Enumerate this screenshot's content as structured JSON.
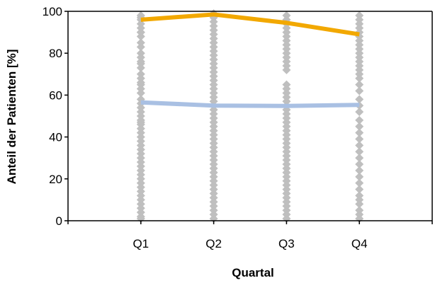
{
  "chart_data": {
    "type": "line",
    "title": "",
    "xlabel": "Quartal",
    "ylabel": "Anteil der Patienten [%]",
    "categories": [
      "Q1",
      "Q2",
      "Q3",
      "Q4"
    ],
    "ylim": [
      0,
      100
    ],
    "yticks": [
      0,
      20,
      40,
      60,
      80,
      100
    ],
    "grid": false,
    "legend": "none",
    "series": [
      {
        "color": "#F2A800",
        "values": [
          96,
          98.5,
          94.5,
          89
        ]
      },
      {
        "color": "#A9C0E3",
        "values": [
          56.5,
          55,
          54.8,
          55.3
        ]
      }
    ],
    "scatter": {
      "color": "#BFBFBF",
      "points": [
        [
          [
            97,
            98,
            96,
            94,
            92,
            90,
            88,
            85,
            83,
            80,
            78,
            75,
            73,
            70,
            68,
            65,
            63,
            61,
            58,
            56,
            54,
            52,
            50,
            48,
            46,
            44,
            42,
            40,
            38,
            36,
            34,
            32,
            30,
            28,
            26,
            24,
            22,
            20,
            18,
            16,
            14,
            12,
            10,
            8,
            6,
            4,
            2,
            1,
            90,
            76,
            66,
            47
          ]
        ],
        [
          [
            99,
            97,
            95,
            93,
            91,
            89,
            87,
            85,
            83,
            81,
            79,
            77,
            75,
            73,
            71,
            69,
            67,
            65,
            63,
            61,
            59,
            57,
            55,
            53,
            51,
            49,
            47,
            45,
            43,
            41,
            39,
            37,
            35,
            33,
            31,
            29,
            27,
            25,
            23,
            21,
            19,
            17,
            15,
            13,
            11,
            9,
            7,
            5,
            3,
            1
          ]
        ],
        [
          [
            98,
            96,
            94,
            92,
            90,
            88,
            86,
            84,
            82,
            80,
            78,
            76,
            74,
            72,
            65,
            63,
            61,
            59,
            57,
            55,
            53,
            51,
            49,
            47,
            45,
            43,
            41,
            39,
            37,
            35,
            33,
            31,
            29,
            27,
            25,
            23,
            21,
            19,
            17,
            15,
            13,
            11,
            9,
            7,
            5,
            3,
            1
          ]
        ],
        [
          [
            98,
            96,
            94,
            92,
            90,
            88,
            86,
            84,
            82,
            80,
            78,
            76,
            74,
            72,
            70,
            68,
            65,
            62,
            58,
            55,
            52,
            48,
            45,
            42,
            39,
            36,
            33,
            30,
            27,
            24,
            21,
            18,
            15,
            12,
            10,
            8,
            5,
            3,
            1
          ]
        ]
      ]
    }
  }
}
